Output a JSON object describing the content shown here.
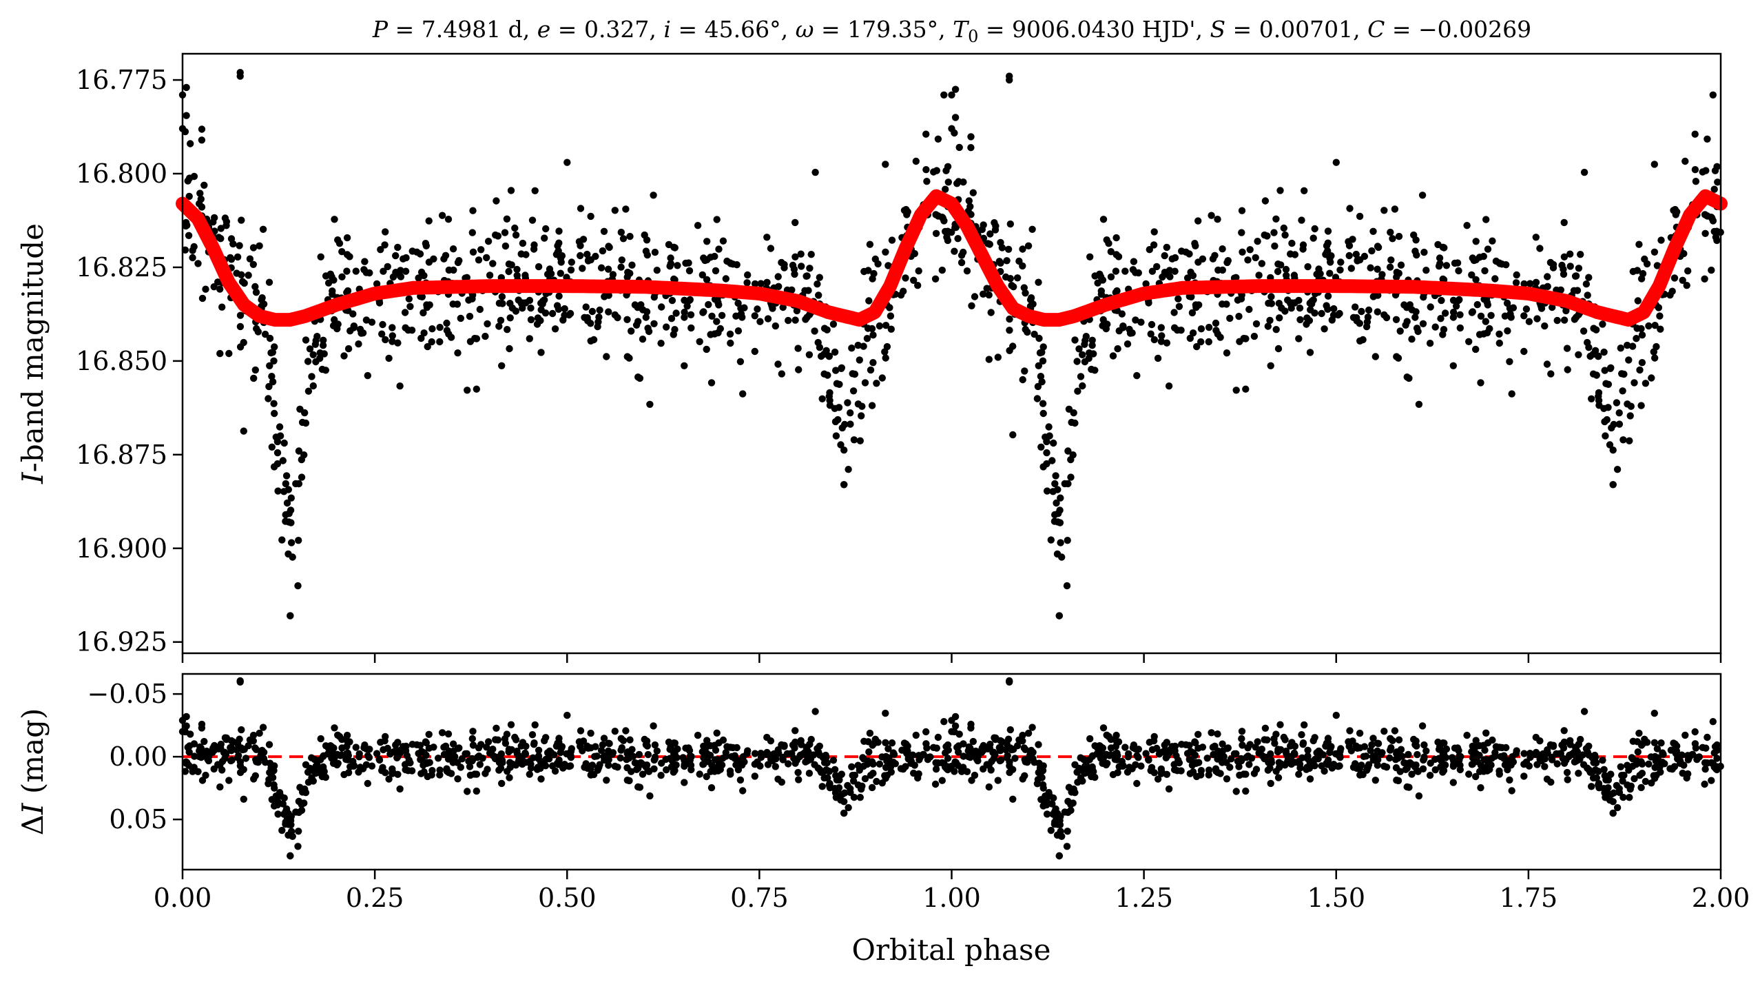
{
  "chart_data": [
    {
      "type": "scatter",
      "panel": "top",
      "title": "P = 7.4981 d, e = 0.327, i = 45.66°, ω = 179.35°, T0 = 9006.0430 HJD', S = 0.00701, C = −0.00269",
      "title_parts": {
        "p_sym": "P",
        "p_val": " = 7.4981 d, ",
        "e_sym": "e",
        "e_val": " = 0.327, ",
        "i_sym": "i",
        "i_val": " = 45.66°, ",
        "w_sym": "ω",
        "w_val": " = 179.35°, ",
        "t_sym": "T",
        "t_sub": "0",
        "t_val": " = 9006.0430 HJD', ",
        "s_sym": "S",
        "s_val": " = 0.00701, ",
        "c_sym": "C",
        "c_val": " = −0.00269"
      },
      "xlabel": "Orbital phase",
      "ylabel_italic": "I",
      "ylabel_rest": "-band magnitude",
      "xlim": [
        0.0,
        2.0
      ],
      "ylim": [
        16.928,
        16.768
      ],
      "y_inverted": true,
      "yticks": [
        "16.775",
        "16.800",
        "16.825",
        "16.850",
        "16.875",
        "16.900",
        "16.925"
      ],
      "xticks": [
        "0.00",
        "0.25",
        "0.50",
        "0.75",
        "1.00",
        "1.25",
        "1.50",
        "1.75",
        "2.00"
      ],
      "series": [
        {
          "kind": "observations",
          "color": "#000000",
          "marker": "circle",
          "model_baseline": 16.83,
          "primary_eclipse_phase": 0.14,
          "primary_eclipse_depth_mag": 0.06,
          "secondary_eclipse_phase": 0.86,
          "secondary_eclipse_depth_mag": 0.03,
          "scatter_sigma_mag": 0.01,
          "points_per_cycle": 850,
          "samples": [
            [
              0.005,
              16.777
            ],
            [
              0.01,
              16.792
            ],
            [
              0.075,
              16.774
            ],
            [
              0.14,
              16.918
            ],
            [
              0.15,
              16.91
            ],
            [
              0.5,
              16.797
            ],
            [
              0.86,
              16.883
            ],
            [
              1.0,
              16.779
            ],
            [
              1.005,
              16.785
            ],
            [
              1.075,
              16.774
            ],
            [
              1.14,
              16.918
            ],
            [
              1.86,
              16.883
            ],
            [
              1.99,
              16.779
            ],
            [
              2.0,
              16.788
            ]
          ]
        },
        {
          "kind": "model",
          "color": "#ff0000",
          "line_style": "solid",
          "x": [
            0.0,
            0.02,
            0.04,
            0.06,
            0.08,
            0.1,
            0.12,
            0.14,
            0.16,
            0.2,
            0.25,
            0.3,
            0.4,
            0.5,
            0.6,
            0.7,
            0.75,
            0.8,
            0.84,
            0.86,
            0.88,
            0.9,
            0.92,
            0.94,
            0.96,
            0.98,
            1.0,
            1.02,
            1.04,
            1.06,
            1.08,
            1.1,
            1.12,
            1.14,
            1.16,
            1.2,
            1.25,
            1.3,
            1.4,
            1.5,
            1.6,
            1.7,
            1.75,
            1.8,
            1.84,
            1.86,
            1.88,
            1.9,
            1.92,
            1.94,
            1.96,
            1.98,
            2.0
          ],
          "y": [
            16.808,
            16.812,
            16.82,
            16.829,
            16.835,
            16.838,
            16.839,
            16.839,
            16.838,
            16.835,
            16.832,
            16.8305,
            16.83,
            16.83,
            16.8302,
            16.8312,
            16.832,
            16.834,
            16.837,
            16.838,
            16.839,
            16.837,
            16.83,
            16.82,
            16.811,
            16.806,
            16.808,
            16.814,
            16.822,
            16.83,
            16.836,
            16.838,
            16.839,
            16.839,
            16.838,
            16.835,
            16.832,
            16.8305,
            16.83,
            16.83,
            16.8302,
            16.8312,
            16.832,
            16.834,
            16.837,
            16.838,
            16.839,
            16.837,
            16.83,
            16.82,
            16.811,
            16.806,
            16.808
          ]
        }
      ]
    },
    {
      "type": "scatter",
      "panel": "bottom",
      "xlabel": "Orbital phase",
      "ylabel_delta": "Δ",
      "ylabel_italic": "I",
      "ylabel_rest": " (mag)",
      "xlim": [
        0.0,
        2.0
      ],
      "ylim": [
        0.09,
        -0.066
      ],
      "y_inverted": true,
      "yticks": [
        "−0.05",
        "0.00",
        "0.05"
      ],
      "xticks": [
        "0.00",
        "0.25",
        "0.50",
        "0.75",
        "1.00",
        "1.25",
        "1.50",
        "1.75",
        "2.00"
      ],
      "reference_line": {
        "y": 0.0,
        "color": "#ff0000",
        "style": "dashed"
      },
      "series": [
        {
          "kind": "residuals",
          "color": "#000000",
          "marker": "circle",
          "primary_dip_phase": 0.14,
          "primary_dip_depth_mag": 0.06,
          "secondary_dip_phase": 0.86,
          "secondary_dip_depth_mag": 0.03,
          "scatter_sigma_mag": 0.01,
          "samples": [
            [
              0.075,
              -0.057
            ],
            [
              0.14,
              0.077
            ],
            [
              0.15,
              0.07
            ],
            [
              0.72,
              -0.036
            ],
            [
              0.86,
              0.045
            ],
            [
              1.075,
              -0.057
            ],
            [
              1.14,
              0.077
            ],
            [
              1.86,
              0.045
            ]
          ]
        }
      ]
    }
  ]
}
